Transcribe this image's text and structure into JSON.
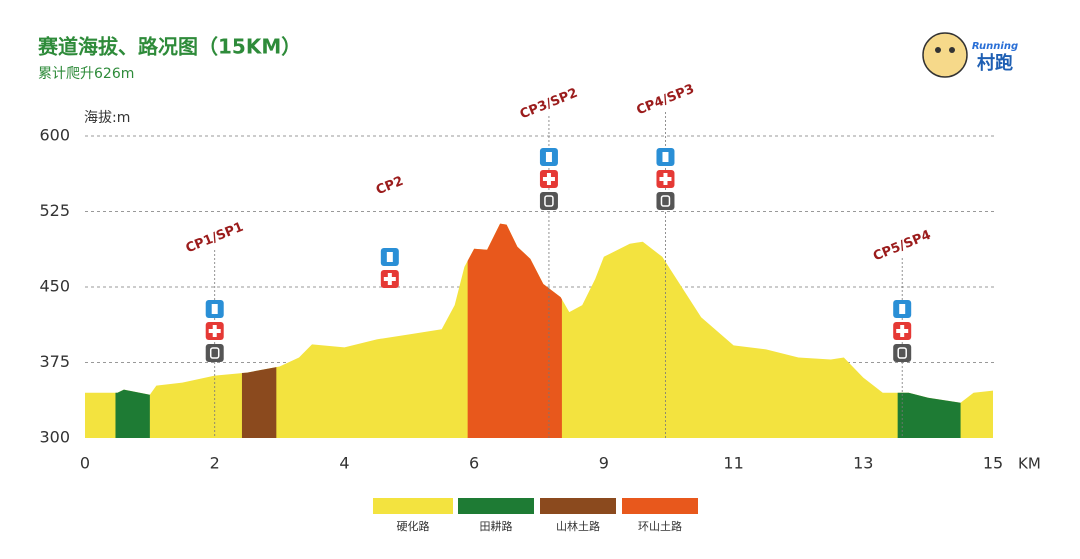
{
  "chart_data": {
    "type": "elevation-profile",
    "title": "赛道海拔、路况图（15KM）",
    "subtitle": "累计爬升626m",
    "y_label": "海拔:m",
    "x_unit": "KM",
    "logo": {
      "text": "村跑",
      "subtext": "Running"
    },
    "ylim": [
      300,
      600
    ],
    "yticks": [
      300,
      375,
      450,
      525,
      600
    ],
    "xlim": [
      0,
      15
    ],
    "xticks": [
      0,
      2,
      4,
      6,
      9,
      11,
      13,
      15
    ],
    "grid": true,
    "base_color": "#f3e33f",
    "x": [
      0,
      0.5,
      0.6,
      1.0,
      1.1,
      1.5,
      2.0,
      2.5,
      3.0,
      3.3,
      3.5,
      4.0,
      4.5,
      5.0,
      5.5,
      5.7,
      5.85,
      6.0,
      6.3,
      6.6,
      6.75,
      7.0,
      7.3,
      7.6,
      8.0,
      8.2,
      8.5,
      8.8,
      9.0,
      9.4,
      9.6,
      9.9,
      10.2,
      10.5,
      11.0,
      11.5,
      12.0,
      12.5,
      12.7,
      13.0,
      13.3,
      13.7,
      14.0,
      14.5,
      14.7,
      15.0
    ],
    "elevation": [
      345,
      345,
      348,
      343,
      352,
      355,
      362,
      365,
      371,
      380,
      393,
      390,
      398,
      403,
      408,
      432,
      470,
      488,
      487,
      513,
      512,
      490,
      478,
      453,
      440,
      425,
      432,
      458,
      480,
      493,
      495,
      480,
      450,
      420,
      392,
      388,
      380,
      378,
      380,
      360,
      345,
      345,
      340,
      335,
      345,
      347
    ],
    "series": [
      {
        "name": "硬化路",
        "color": "#f3e33f",
        "ranges": []
      },
      {
        "name": "田耕路",
        "color": "#1e7b34",
        "ranges": [
          [
            0.47,
            1.0
          ],
          [
            13.53,
            14.5
          ]
        ]
      },
      {
        "name": "山林土路",
        "color": "#8b4a1e",
        "ranges": [
          [
            2.42,
            2.95
          ]
        ]
      },
      {
        "name": "环山土路",
        "color": "#e8581c",
        "ranges": [
          [
            5.9,
            8.03
          ]
        ]
      }
    ],
    "checkpoints": [
      {
        "label": "CP1/SP1",
        "km": 2.0
      },
      {
        "label": "CP2",
        "km": 4.7
      },
      {
        "label": "CP3/SP2",
        "km": 7.73
      },
      {
        "label": "CP4/SP3",
        "km": 9.95
      },
      {
        "label": "CP5/SP4",
        "km": 13.6
      }
    ]
  }
}
